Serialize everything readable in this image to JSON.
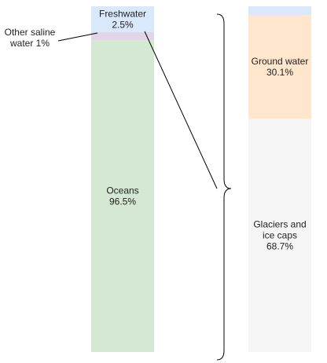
{
  "chart_data": [
    {
      "type": "bar",
      "stacked": true,
      "segments": [
        {
          "label_lines": [
            "Freshwater",
            "2.5%"
          ],
          "value": 2.5,
          "unit": "%",
          "color": "#dae8fc"
        },
        {
          "label_lines": [
            "Other saline",
            "water 1%"
          ],
          "value": 1,
          "unit": "%",
          "color": "#e1d5e7"
        },
        {
          "label_lines": [
            "Oceans",
            "96.5%"
          ],
          "value": 96.5,
          "unit": "%",
          "color": "#d5e8d4"
        }
      ]
    },
    {
      "type": "bar",
      "stacked": true,
      "segments": [
        {
          "label_lines": [],
          "value": 1.2,
          "unit": "%",
          "color": "#dae8fc"
        },
        {
          "label_lines": [
            "Ground water",
            "30.1%"
          ],
          "value": 30.1,
          "unit": "%",
          "color": "#ffe6cc"
        },
        {
          "label_lines": [
            "Glaciers and",
            "ice caps",
            "68.7%"
          ],
          "value": 68.7,
          "unit": "%",
          "color": "#f5f5f5"
        }
      ]
    }
  ]
}
